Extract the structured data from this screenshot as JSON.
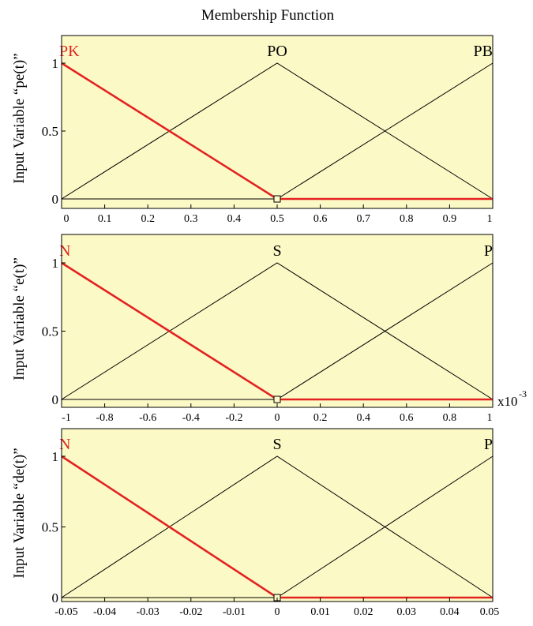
{
  "title": "Membership Function",
  "colors": {
    "background": "#fbf9c5",
    "line": "#000000",
    "highlight": "#e32222"
  },
  "chart_data": [
    {
      "type": "line",
      "ylabel": "Input Variable “pe(t)”",
      "xlim": [
        0,
        1
      ],
      "ylim": [
        0,
        1
      ],
      "x_ticks": [
        "0",
        "0.1",
        "0.2",
        "0.3",
        "0.4",
        "0.5",
        "0.6",
        "0.7",
        "0.8",
        "0.9",
        "1"
      ],
      "y_ticks": [
        "0",
        "0.5",
        "1"
      ],
      "x_multiplier": "",
      "series": [
        {
          "name": "PK",
          "highlighted": true,
          "x": [
            0,
            0.5,
            1
          ],
          "y": [
            1,
            0,
            0
          ]
        },
        {
          "name": "PO",
          "highlighted": false,
          "x": [
            0,
            0.5,
            1
          ],
          "y": [
            0,
            1,
            0
          ]
        },
        {
          "name": "PB",
          "highlighted": false,
          "x": [
            0,
            0.5,
            1
          ],
          "y": [
            0,
            0,
            1
          ]
        }
      ],
      "selected_point": {
        "x": 0.5,
        "y": 0
      }
    },
    {
      "type": "line",
      "ylabel": "Input Variable “e(t)”",
      "xlim": [
        -1,
        1
      ],
      "ylim": [
        0,
        1
      ],
      "x_ticks": [
        "-1",
        "-0.8",
        "-0.6",
        "-0.4",
        "-0.2",
        "0",
        "0.2",
        "0.4",
        "0.6",
        "0.8",
        "1"
      ],
      "y_ticks": [
        "0",
        "0.5",
        "1"
      ],
      "x_multiplier": {
        "base": "x10",
        "exponent": "-3"
      },
      "series": [
        {
          "name": "N",
          "highlighted": true,
          "x": [
            -1,
            0,
            1
          ],
          "y": [
            1,
            0,
            0
          ]
        },
        {
          "name": "S",
          "highlighted": false,
          "x": [
            -1,
            0,
            1
          ],
          "y": [
            0,
            1,
            0
          ]
        },
        {
          "name": "P",
          "highlighted": false,
          "x": [
            -1,
            0,
            1
          ],
          "y": [
            0,
            0,
            1
          ]
        }
      ],
      "selected_point": {
        "x": 0,
        "y": 0
      }
    },
    {
      "type": "line",
      "ylabel": "Input Variable “de(t)”",
      "xlim": [
        -0.05,
        0.05
      ],
      "ylim": [
        0,
        1
      ],
      "x_ticks": [
        "-0.05",
        "-0.04",
        "-0.03",
        "-0.02",
        "-0.01",
        "0",
        "0.01",
        "0.02",
        "0.03",
        "0.04",
        "0.05"
      ],
      "y_ticks": [
        "0",
        "0.5",
        "1"
      ],
      "x_multiplier": "",
      "series": [
        {
          "name": "N",
          "highlighted": true,
          "x": [
            -0.05,
            0,
            0.05
          ],
          "y": [
            1,
            0,
            0
          ]
        },
        {
          "name": "S",
          "highlighted": false,
          "x": [
            -0.05,
            0,
            0.05
          ],
          "y": [
            0,
            1,
            0
          ]
        },
        {
          "name": "P",
          "highlighted": false,
          "x": [
            -0.05,
            0,
            0.05
          ],
          "y": [
            0,
            0,
            1
          ]
        }
      ],
      "selected_point": {
        "x": 0,
        "y": 0
      }
    }
  ]
}
